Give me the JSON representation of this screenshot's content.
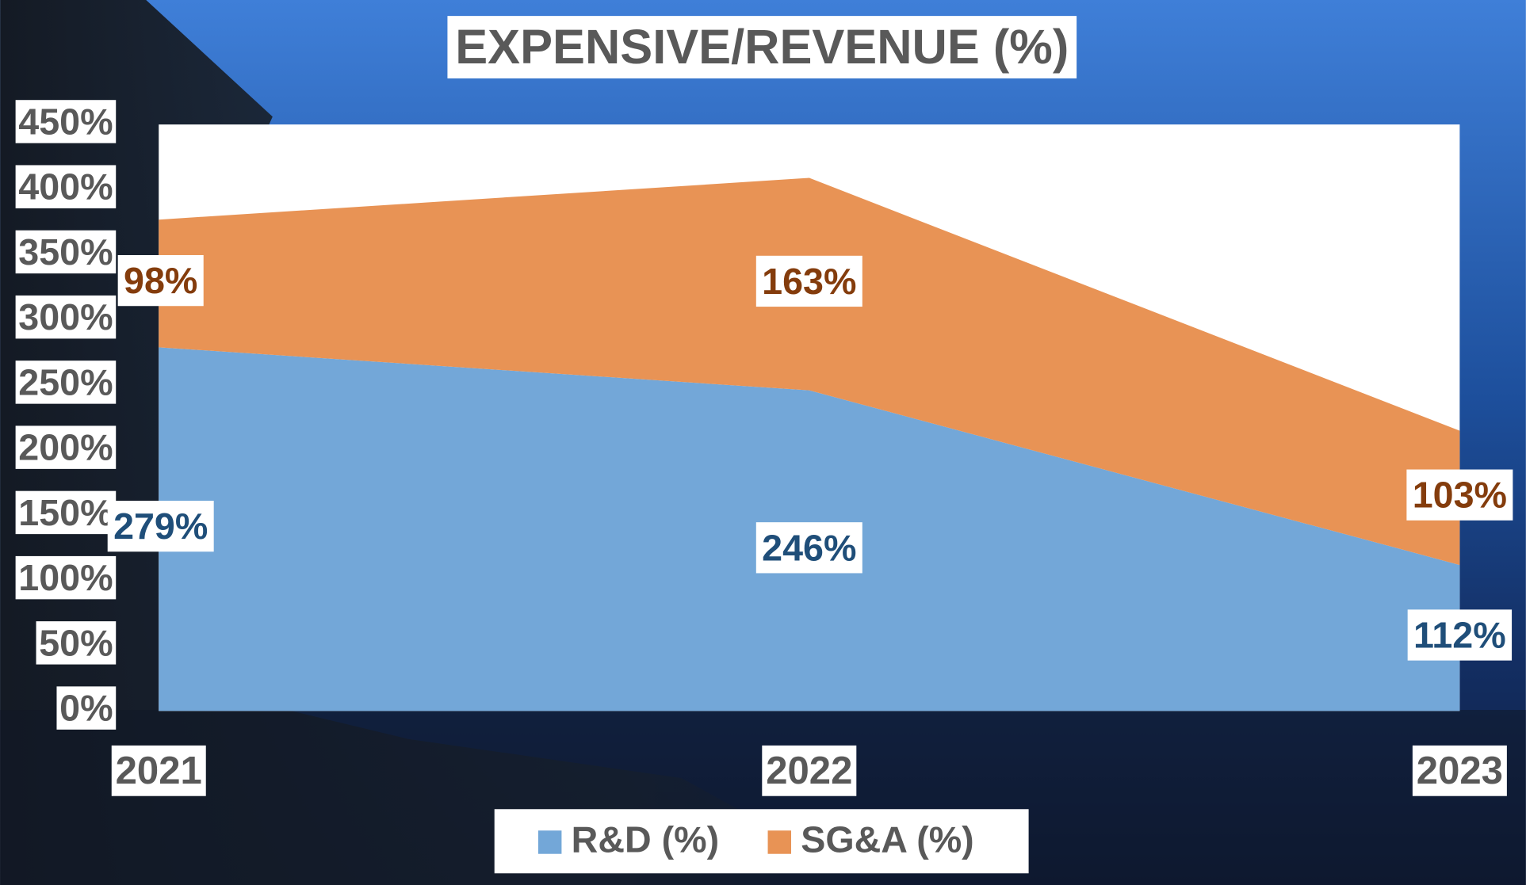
{
  "chart_data": {
    "type": "stacked-area",
    "title": "EXPENSIVE/REVENUE (%)",
    "categories": [
      "2021",
      "2022",
      "2023"
    ],
    "series": [
      {
        "name": "R&D (%)",
        "color": "#73a7d8",
        "label_color": "#1f4e79",
        "values": [
          279,
          246,
          112
        ],
        "value_labels": [
          "279%",
          "246%",
          "112%"
        ]
      },
      {
        "name": "SG&A (%)",
        "color": "#e89355",
        "label_color": "#843c0c",
        "values": [
          98,
          163,
          103
        ],
        "value_labels": [
          "98%",
          "163%",
          "103%"
        ]
      }
    ],
    "ylim": [
      0,
      450
    ],
    "yticks": [
      {
        "value": 0,
        "label": "0%"
      },
      {
        "value": 50,
        "label": "50%"
      },
      {
        "value": 100,
        "label": "100%"
      },
      {
        "value": 150,
        "label": "150%"
      },
      {
        "value": 200,
        "label": "200%"
      },
      {
        "value": 250,
        "label": "250%"
      },
      {
        "value": 300,
        "label": "300%"
      },
      {
        "value": 350,
        "label": "350%"
      },
      {
        "value": 400,
        "label": "400%"
      },
      {
        "value": 450,
        "label": "450%"
      }
    ],
    "legend": "bottom"
  }
}
